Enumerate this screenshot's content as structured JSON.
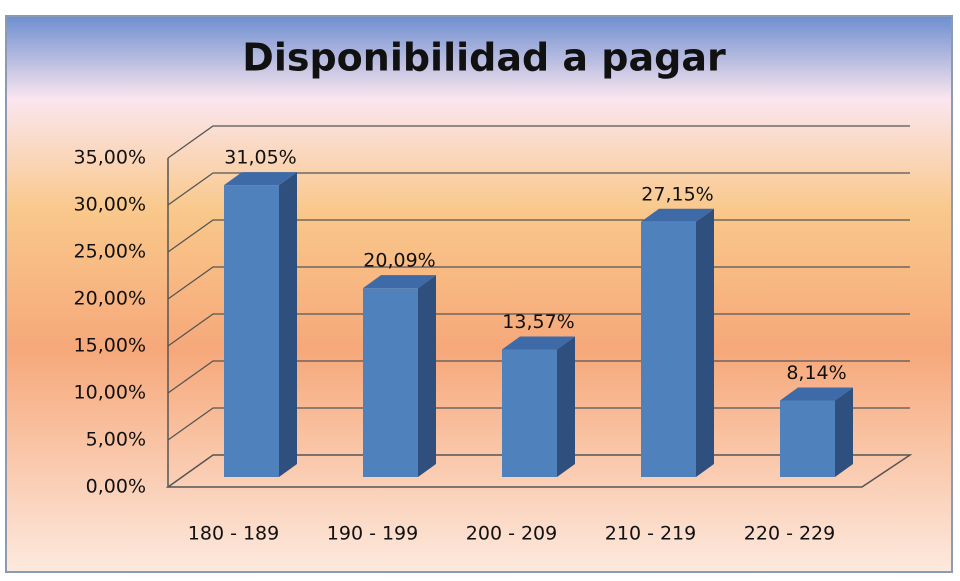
{
  "chart_data": {
    "type": "bar3d",
    "title": "Disponibilidad a pagar",
    "categories": [
      "180 - 189",
      "190 - 199",
      "200 - 209",
      "210 - 219",
      "220 - 229"
    ],
    "values": [
      31.05,
      20.09,
      13.57,
      27.15,
      8.14
    ],
    "value_labels": [
      "31,05%",
      "20,09%",
      "13,57%",
      "27,15%",
      "8,14%"
    ],
    "color": "#4f81bd",
    "ylim": [
      0,
      35
    ],
    "yticks": [
      {
        "value": 0,
        "label": "0,00%"
      },
      {
        "value": 5,
        "label": "5,00%"
      },
      {
        "value": 10,
        "label": "10,00%"
      },
      {
        "value": 15,
        "label": "15,00%"
      },
      {
        "value": 20,
        "label": "20,00%"
      },
      {
        "value": 25,
        "label": "25,00%"
      },
      {
        "value": 30,
        "label": "30,00%"
      },
      {
        "value": 35,
        "label": "35,00%"
      }
    ],
    "grid": true
  }
}
